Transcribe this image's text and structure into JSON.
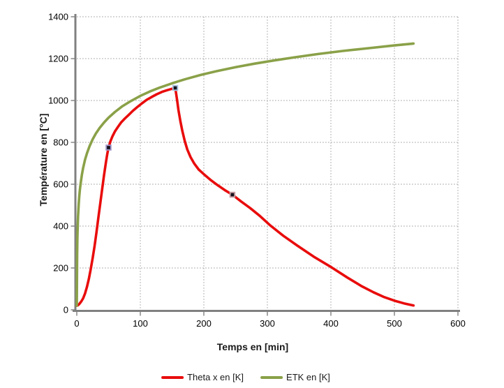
{
  "chart_data": {
    "type": "line",
    "title": "",
    "xlabel": "Temps en [min]",
    "ylabel": "Température en [°C]",
    "xlim": [
      0,
      600
    ],
    "ylim": [
      0,
      1400
    ],
    "xticks": [
      0,
      100,
      200,
      300,
      400,
      500,
      600
    ],
    "yticks": [
      0,
      200,
      400,
      600,
      800,
      1000,
      1200,
      1400
    ],
    "grid": true,
    "grid_style": "dotted",
    "grid_color": "#a8a8a8",
    "axis_color": "#808080",
    "tick_label_color": "#000000",
    "legend_position": "bottom-center",
    "series": [
      {
        "name": "Theta x en [K]",
        "color": "#e90c0c",
        "points": [
          [
            0,
            20
          ],
          [
            2,
            22
          ],
          [
            4,
            28
          ],
          [
            7,
            40
          ],
          [
            10,
            55
          ],
          [
            13,
            78
          ],
          [
            16,
            110
          ],
          [
            19,
            148
          ],
          [
            22,
            195
          ],
          [
            25,
            248
          ],
          [
            28,
            305
          ],
          [
            31,
            370
          ],
          [
            34,
            440
          ],
          [
            37,
            510
          ],
          [
            40,
            578
          ],
          [
            43,
            645
          ],
          [
            46,
            708
          ],
          [
            48,
            745
          ],
          [
            50,
            775
          ],
          [
            53,
            805
          ],
          [
            56,
            828
          ],
          [
            60,
            852
          ],
          [
            65,
            875
          ],
          [
            70,
            896
          ],
          [
            76,
            915
          ],
          [
            82,
            932
          ],
          [
            88,
            950
          ],
          [
            95,
            968
          ],
          [
            102,
            985
          ],
          [
            110,
            1003
          ],
          [
            118,
            1017
          ],
          [
            126,
            1030
          ],
          [
            134,
            1041
          ],
          [
            142,
            1049
          ],
          [
            150,
            1056
          ],
          [
            155,
            1060
          ],
          [
            156,
            1040
          ],
          [
            158,
            1000
          ],
          [
            160,
            955
          ],
          [
            163,
            903
          ],
          [
            166,
            856
          ],
          [
            170,
            806
          ],
          [
            174,
            766
          ],
          [
            179,
            730
          ],
          [
            185,
            698
          ],
          [
            192,
            670
          ],
          [
            200,
            648
          ],
          [
            210,
            622
          ],
          [
            221,
            597
          ],
          [
            233,
            572
          ],
          [
            245,
            550
          ],
          [
            259,
            517
          ],
          [
            273,
            486
          ],
          [
            288,
            449
          ],
          [
            305,
            402
          ],
          [
            325,
            354
          ],
          [
            347,
            307
          ],
          [
            373,
            254
          ],
          [
            401,
            203
          ],
          [
            426,
            154
          ],
          [
            449,
            112
          ],
          [
            467,
            84
          ],
          [
            483,
            62
          ],
          [
            502,
            42
          ],
          [
            515,
            31
          ],
          [
            530,
            21
          ]
        ],
        "markers": [
          {
            "x": 50,
            "y": 775,
            "fill": "#14121c",
            "border": "#9d94c6"
          },
          {
            "x": 155,
            "y": 1060,
            "fill": "#14121c",
            "border": "#a9c3e2"
          },
          {
            "x": 245,
            "y": 550,
            "fill": "#14121c",
            "border": "#c99fa4"
          }
        ]
      },
      {
        "name": "ETK en [K]",
        "color": "#8aa148",
        "points": [
          [
            0,
            20
          ],
          [
            0.5,
            260
          ],
          [
            1,
            349
          ],
          [
            1.5,
            405
          ],
          [
            2,
            445
          ],
          [
            3,
            502
          ],
          [
            4,
            544
          ],
          [
            5,
            576
          ],
          [
            6,
            603
          ],
          [
            8,
            645
          ],
          [
            10,
            678
          ],
          [
            13,
            717
          ],
          [
            16,
            748
          ],
          [
            20,
            781
          ],
          [
            25,
            815
          ],
          [
            30,
            842
          ],
          [
            36,
            869
          ],
          [
            43,
            895
          ],
          [
            50,
            918
          ],
          [
            60,
            945
          ],
          [
            72,
            973
          ],
          [
            85,
            997
          ],
          [
            100,
            1022
          ],
          [
            115,
            1043
          ],
          [
            130,
            1061
          ],
          [
            150,
            1082
          ],
          [
            170,
            1101
          ],
          [
            195,
            1122
          ],
          [
            220,
            1140
          ],
          [
            250,
            1159
          ],
          [
            280,
            1176
          ],
          [
            310,
            1191
          ],
          [
            345,
            1207
          ],
          [
            380,
            1222
          ],
          [
            420,
            1237
          ],
          [
            460,
            1250
          ],
          [
            500,
            1263
          ],
          [
            530,
            1272
          ]
        ],
        "markers": []
      }
    ]
  }
}
